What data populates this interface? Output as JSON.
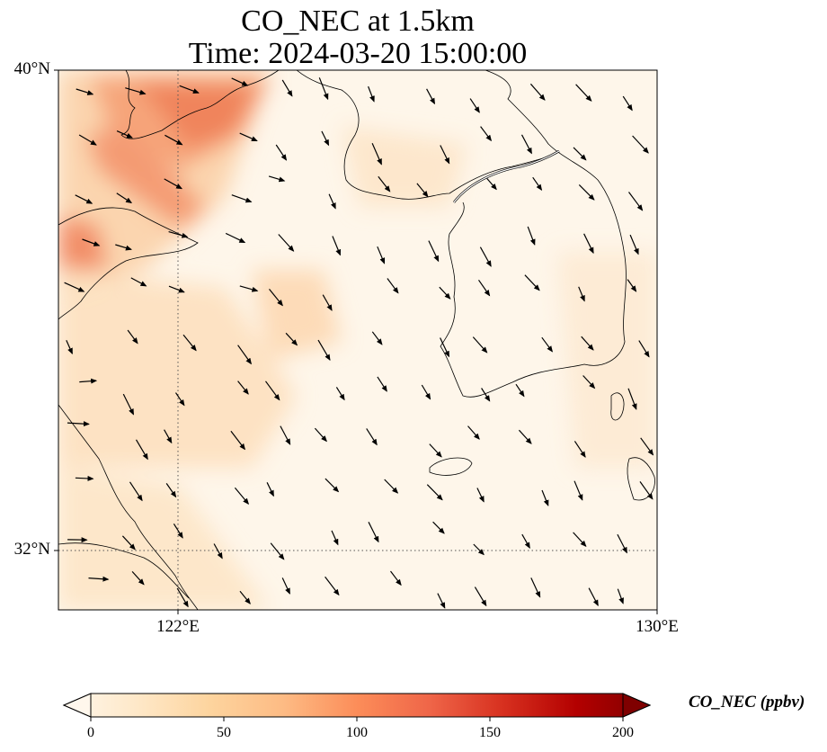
{
  "title_line1": "CO_NEC at 1.5km",
  "title_line2": "Time: 2024-03-20 15:00:00",
  "lat_labels": [
    "40°N",
    "32°N"
  ],
  "lon_labels": [
    "122°E",
    "130°E"
  ],
  "colorbar": {
    "label": "CO_NEC (ppbv)",
    "ticks": [
      "0",
      "50",
      "100",
      "150",
      "200"
    ],
    "min": 0,
    "max": 200,
    "extend": "both",
    "colormap": "OrRd",
    "colors": [
      "#fff7ec",
      "#fee8c8",
      "#fdd49e",
      "#fdbb84",
      "#fc8d59",
      "#ef6548",
      "#d7301f",
      "#b30000",
      "#7f0000"
    ]
  },
  "map_extent": {
    "lon_min": 120,
    "lon_max": 130,
    "lat_min": 31,
    "lat_max": 40
  },
  "gridlines": {
    "lon": [
      122
    ],
    "lat": [
      32
    ],
    "style": "dotted"
  },
  "wind_vector_direction": "northwest-to-southeast"
}
